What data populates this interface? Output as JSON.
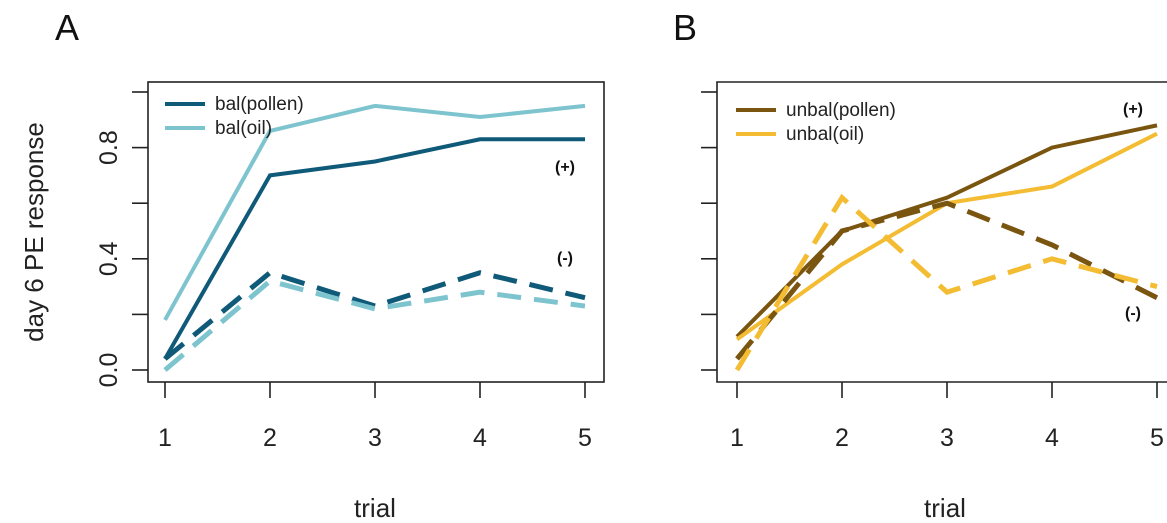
{
  "figure": {
    "ylabel": "day 6 PE response",
    "xlabel": "trial"
  },
  "chart_data": [
    {
      "panel": "A",
      "type": "line",
      "title": "",
      "xlabel": "trial",
      "ylabel": "day 6 PE response",
      "x": [
        1,
        2,
        3,
        4,
        5
      ],
      "xlim": [
        1,
        5
      ],
      "ylim": [
        0,
        1
      ],
      "yticks": [
        0.0,
        0.2,
        0.4,
        0.6,
        0.8,
        1.0
      ],
      "ytick_labels": [
        "0.0",
        "",
        "0.4",
        "",
        "0.8",
        ""
      ],
      "grid": false,
      "legend_position": "top-left",
      "legend": [
        "bal(pollen)",
        "bal(oil)"
      ],
      "annotations": [
        {
          "text": "(+)",
          "x": 4.8,
          "y": 0.72
        },
        {
          "text": "(-)",
          "x": 4.8,
          "y": 0.4
        }
      ],
      "series": [
        {
          "name": "bal(pollen)",
          "group": "(+)",
          "style": "solid",
          "color": "#0f5a78",
          "values": [
            0.04,
            0.7,
            0.75,
            0.83,
            0.83
          ]
        },
        {
          "name": "bal(oil)",
          "group": "(+)",
          "style": "solid",
          "color": "#7dc4cf",
          "values": [
            0.18,
            0.86,
            0.95,
            0.91,
            0.95
          ]
        },
        {
          "group": "(-)",
          "style": "dashed",
          "color": "#0f5a78",
          "values": [
            0.04,
            0.35,
            0.23,
            0.35,
            0.26
          ]
        },
        {
          "group": "(-)",
          "style": "dashed",
          "color": "#7dc4cf",
          "values": [
            0.0,
            0.32,
            0.22,
            0.28,
            0.23
          ]
        }
      ]
    },
    {
      "panel": "B",
      "type": "line",
      "title": "",
      "xlabel": "trial",
      "ylabel": "",
      "x": [
        1,
        2,
        3,
        4,
        5
      ],
      "xlim": [
        1,
        5
      ],
      "ylim": [
        0,
        1
      ],
      "yticks": [
        0.0,
        0.2,
        0.4,
        0.6,
        0.8,
        1.0
      ],
      "ytick_labels": [
        "",
        "",
        "",
        "",
        "",
        ""
      ],
      "grid": false,
      "legend_position": "top-left",
      "legend": [
        "unbal(pollen)",
        "unbal(oil)"
      ],
      "annotations": [
        {
          "text": "(+)",
          "x": 4.8,
          "y": 0.93
        },
        {
          "text": "(-)",
          "x": 4.8,
          "y": 0.19
        }
      ],
      "series": [
        {
          "name": "unbal(pollen)",
          "group": "(+)",
          "style": "solid",
          "color": "#7a5510",
          "values": [
            0.12,
            0.5,
            0.62,
            0.8,
            0.88
          ]
        },
        {
          "name": "unbal(oil)",
          "group": "(+)",
          "style": "solid",
          "color": "#f3bc32",
          "values": [
            0.11,
            0.38,
            0.6,
            0.66,
            0.85
          ]
        },
        {
          "group": "(-)",
          "style": "dashed",
          "color": "#7a5510",
          "values": [
            0.04,
            0.5,
            0.6,
            0.45,
            0.26
          ]
        },
        {
          "group": "(-)",
          "style": "dashed",
          "color": "#f3bc32",
          "values": [
            0.0,
            0.62,
            0.28,
            0.4,
            0.3
          ]
        }
      ]
    }
  ]
}
